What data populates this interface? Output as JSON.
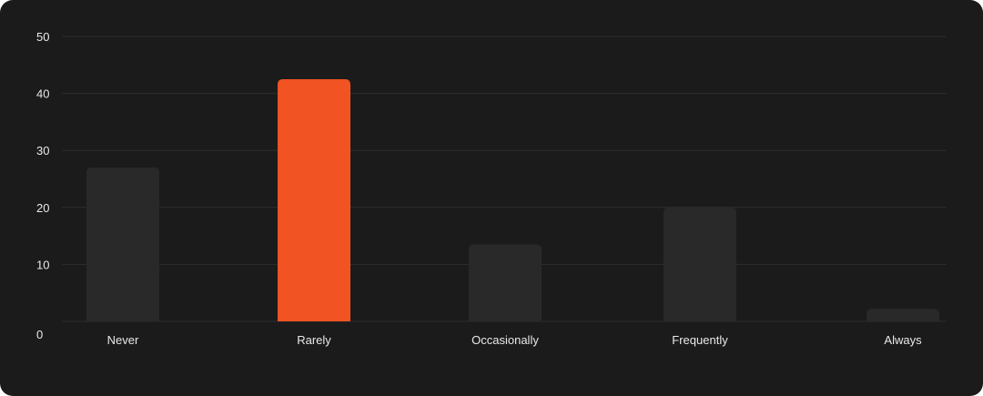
{
  "chart_data": {
    "type": "bar",
    "categories": [
      "Never",
      "Rarely",
      "Occasionally",
      "Frequently",
      "Always"
    ],
    "values": [
      27,
      42.5,
      13.5,
      20,
      2.2
    ],
    "highlight_index": 1,
    "ylim": [
      0,
      50
    ],
    "yticks": [
      0,
      10,
      20,
      30,
      40,
      50
    ],
    "title": "",
    "xlabel": "",
    "ylabel": "",
    "grid": true,
    "legend": "none",
    "colors": {
      "background": "#1b1b1b",
      "bar": "#292929",
      "highlight": "#f25322",
      "grid": "#2e2e2e",
      "text": "#e9e9e9"
    }
  }
}
